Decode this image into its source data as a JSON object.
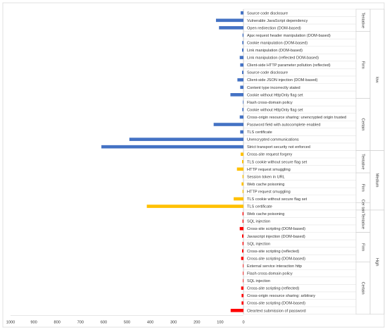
{
  "chart_data": {
    "type": "bar",
    "orientation": "horizontal",
    "x_reversed": true,
    "xlim": [
      0,
      1000
    ],
    "xticks": [
      "1000",
      "900",
      "800",
      "700",
      "600",
      "500",
      "400",
      "300",
      "200",
      "100",
      "0"
    ],
    "colors": {
      "Low": "#4472c4",
      "Medium": "#ffc000",
      "High": "#ff0000"
    },
    "rows": [
      {
        "label": "Source code disclosure",
        "value": 12,
        "severity": "Low",
        "confidence": "Tentative"
      },
      {
        "label": "Vulnerable JavaScript dependency",
        "value": 118,
        "severity": "Low",
        "confidence": "Tentative"
      },
      {
        "label": "Open redirection (DOM-based)",
        "value": 105,
        "severity": "Low",
        "confidence": "Tentative"
      },
      {
        "label": "Ajax request header manipulation (DOM-based)",
        "value": 4,
        "severity": "Low",
        "confidence": "Firm"
      },
      {
        "label": "Cookie manipulation (DOM-based)",
        "value": 5,
        "severity": "Low",
        "confidence": "Firm"
      },
      {
        "label": "Link manipulation (DOM-based)",
        "value": 6,
        "severity": "Low",
        "confidence": "Firm"
      },
      {
        "label": "Link manipulation (reflected DOM-based)",
        "value": 16,
        "severity": "Low",
        "confidence": "Firm"
      },
      {
        "label": "Client-side HTTP parameter pollution (reflected)",
        "value": 14,
        "severity": "Low",
        "confidence": "Firm"
      },
      {
        "label": "Source code disclosure",
        "value": 6,
        "severity": "Low",
        "confidence": "Firm"
      },
      {
        "label": "Client-side JSON injection (DOM-based)",
        "value": 26,
        "severity": "Low",
        "confidence": "Firm"
      },
      {
        "label": "Content type incorrectly stated",
        "value": 14,
        "severity": "Low",
        "confidence": "Firm"
      },
      {
        "label": "Cookie without HttpOnly flag set",
        "value": 56,
        "severity": "Low",
        "confidence": "Firm"
      },
      {
        "label": "Flash cross-domain policy",
        "value": 2,
        "severity": "Low",
        "confidence": "Certain"
      },
      {
        "label": "Cookie without HttpOnly flag set",
        "value": 5,
        "severity": "Low",
        "confidence": "Certain"
      },
      {
        "label": "Cross-origin resource sharing: unencrypted origin trusted",
        "value": 16,
        "severity": "Low",
        "confidence": "Certain"
      },
      {
        "label": "Password field with autocomplete enabled",
        "value": 128,
        "severity": "Low",
        "confidence": "Certain"
      },
      {
        "label": "TLS certificate",
        "value": 14,
        "severity": "Low",
        "confidence": "Certain"
      },
      {
        "label": "Unencrypted communications",
        "value": 490,
        "severity": "Low",
        "confidence": "Certain"
      },
      {
        "label": "Strict transport security not enforced",
        "value": 610,
        "severity": "Low",
        "confidence": "Certain"
      },
      {
        "label": "Cross-site request forgery",
        "value": 12,
        "severity": "Medium",
        "confidence": "Tentative"
      },
      {
        "label": "TLS cookie without secure flag set",
        "value": 6,
        "severity": "Medium",
        "confidence": "Tentative"
      },
      {
        "label": "HTTP request smuggling",
        "value": 28,
        "severity": "Medium",
        "confidence": "Tentative"
      },
      {
        "label": "Session token in URL",
        "value": 4,
        "severity": "Medium",
        "confidence": "Firm"
      },
      {
        "label": "Web cache poisoning",
        "value": 8,
        "severity": "Medium",
        "confidence": "Firm"
      },
      {
        "label": "HTTP request smuggling",
        "value": 4,
        "severity": "Medium",
        "confidence": "Firm"
      },
      {
        "label": "TLS cookie without secure flag set",
        "value": 42,
        "severity": "Medium",
        "confidence": "Firm"
      },
      {
        "label": "TLS certificate",
        "value": 415,
        "severity": "Medium",
        "confidence": "Certain"
      },
      {
        "label": "Web cache poisoning",
        "value": 4,
        "severity": "High",
        "confidence": "Tentative"
      },
      {
        "label": "SQL injection",
        "value": 4,
        "severity": "High",
        "confidence": "Tentative"
      },
      {
        "label": "Cross-site scripting (DOM-based)",
        "value": 16,
        "severity": "High",
        "confidence": "Tentative"
      },
      {
        "label": "Javascript injection (DOM-based)",
        "value": 6,
        "severity": "High",
        "confidence": "Firm"
      },
      {
        "label": "SQL injection",
        "value": 4,
        "severity": "High",
        "confidence": "Firm"
      },
      {
        "label": "Cross-site scripting (reflected)",
        "value": 6,
        "severity": "High",
        "confidence": "Firm"
      },
      {
        "label": "Cross-site scripting (DOM-based)",
        "value": 10,
        "severity": "High",
        "confidence": "Firm"
      },
      {
        "label": "External service interaction http",
        "value": 2,
        "severity": "High",
        "confidence": "Certain"
      },
      {
        "label": "Flash cross-domain policy",
        "value": 2,
        "severity": "High",
        "confidence": "Certain"
      },
      {
        "label": "SQL injection",
        "value": 2,
        "severity": "High",
        "confidence": "Certain"
      },
      {
        "label": "Cross-site scripting (reflected)",
        "value": 10,
        "severity": "High",
        "confidence": "Certain"
      },
      {
        "label": "Cross-origin resource sharing: arbitrary",
        "value": 8,
        "severity": "High",
        "confidence": "Certain"
      },
      {
        "label": "Cross-site scripting (DOM-based)",
        "value": 8,
        "severity": "High",
        "confidence": "Certain"
      },
      {
        "label": "Cleartext submission of password",
        "value": 55,
        "severity": "High",
        "confidence": "Certain"
      }
    ],
    "confidence_groups": [
      {
        "name": "Tentative",
        "start": 0,
        "end": 2
      },
      {
        "name": "Firm",
        "start": 3,
        "end": 11
      },
      {
        "name": "Certain",
        "start": 12,
        "end": 18
      },
      {
        "name": "Tentative",
        "start": 19,
        "end": 21
      },
      {
        "name": "Firm",
        "start": 22,
        "end": 25
      },
      {
        "name": "Cer tain",
        "start": 26,
        "end": 26
      },
      {
        "name": "Tentative",
        "start": 27,
        "end": 29
      },
      {
        "name": "Firm",
        "start": 30,
        "end": 33
      },
      {
        "name": "Certain",
        "start": 34,
        "end": 40
      }
    ],
    "severity_groups": [
      {
        "name": "low",
        "start": 0,
        "end": 18
      },
      {
        "name": "Medium",
        "start": 19,
        "end": 26
      },
      {
        "name": "High",
        "start": 27,
        "end": 40
      }
    ]
  }
}
